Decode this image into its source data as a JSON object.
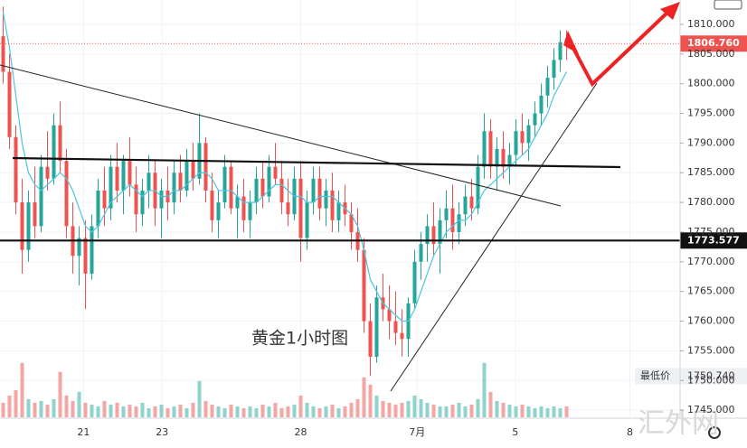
{
  "chart_data": {
    "type": "candlestick",
    "annotation": "黄金1小时图",
    "watermark": "汇外网",
    "xlim": [
      -0.5,
      106.93
    ],
    "xticks": [
      {
        "value": 12.7,
        "label": "21"
      },
      {
        "value": 25.1,
        "label": "23"
      },
      {
        "value": 47,
        "label": "28"
      },
      {
        "value": 65.4,
        "label": "7月"
      },
      {
        "value": 80.9,
        "label": "5"
      },
      {
        "value": 99,
        "label": "8"
      }
    ],
    "ylim": [
      1743.8,
      1814.1
    ],
    "yticks": [
      {
        "value": 1745,
        "label": "1745.000"
      },
      {
        "value": 1750,
        "label": "1750.000"
      },
      {
        "value": 1755,
        "label": "1755.000"
      },
      {
        "value": 1760,
        "label": "1760.000"
      },
      {
        "value": 1765,
        "label": "1765.000"
      },
      {
        "value": 1770,
        "label": "1770.000"
      },
      {
        "value": 1775,
        "label": "1775.000"
      },
      {
        "value": 1780,
        "label": "1780.000"
      },
      {
        "value": 1785,
        "label": "1785.000"
      },
      {
        "value": 1790,
        "label": "1790.000"
      },
      {
        "value": 1795,
        "label": "1795.000"
      },
      {
        "value": 1800,
        "label": "1800.000"
      },
      {
        "value": 1805,
        "label": "1805.000"
      },
      {
        "value": 1810,
        "label": "1810.000"
      }
    ],
    "up_color": "#26a69a",
    "down_color": "#ef5350",
    "ma_color": "#4dc3e0",
    "volume_up_color": "#8fd3cc",
    "volume_down_color": "#f3a6a4",
    "last_price": {
      "value": 1806.76,
      "label": "1806.760"
    },
    "support_line": {
      "value": 1773.577,
      "label": "1773.577"
    },
    "low_label": "最低价",
    "low": {
      "value": 1750.74,
      "label": "1750.740"
    },
    "volume_lim": [
      0,
      230
    ],
    "candles": [
      [
        1808,
        1813,
        1800,
        1802
      ],
      [
        1802,
        1805,
        1789,
        1791
      ],
      [
        1791,
        1793,
        1778,
        1780
      ],
      [
        1780,
        1784,
        1768,
        1772
      ],
      [
        1772,
        1782,
        1770,
        1780
      ],
      [
        1780,
        1786,
        1774,
        1776
      ],
      [
        1776,
        1788,
        1775,
        1786
      ],
      [
        1786,
        1792,
        1782,
        1784
      ],
      [
        1784,
        1795,
        1783,
        1793
      ],
      [
        1793,
        1797,
        1785,
        1787
      ],
      [
        1787,
        1789,
        1774,
        1776
      ],
      [
        1776,
        1780,
        1768,
        1771
      ],
      [
        1771,
        1776,
        1766,
        1774
      ],
      [
        1774,
        1777,
        1762,
        1768
      ],
      [
        1768,
        1778,
        1767,
        1776
      ],
      [
        1776,
        1784,
        1774,
        1782
      ],
      [
        1782,
        1786,
        1776,
        1779
      ],
      [
        1779,
        1788,
        1777,
        1786
      ],
      [
        1786,
        1790,
        1780,
        1782
      ],
      [
        1782,
        1788,
        1778,
        1787
      ],
      [
        1787,
        1791,
        1781,
        1783
      ],
      [
        1783,
        1786,
        1775,
        1778
      ],
      [
        1778,
        1784,
        1776,
        1782
      ],
      [
        1782,
        1788,
        1779,
        1785
      ],
      [
        1785,
        1787,
        1776,
        1779
      ],
      [
        1779,
        1784,
        1774,
        1782
      ],
      [
        1782,
        1786,
        1777,
        1780
      ],
      [
        1780,
        1787,
        1778,
        1785
      ],
      [
        1785,
        1788,
        1780,
        1782
      ],
      [
        1782,
        1789,
        1781,
        1787
      ],
      [
        1787,
        1790,
        1782,
        1784
      ],
      [
        1784,
        1795,
        1783,
        1790
      ],
      [
        1790,
        1791,
        1780,
        1782
      ],
      [
        1782,
        1785,
        1775,
        1777
      ],
      [
        1777,
        1782,
        1774,
        1780
      ],
      [
        1780,
        1788,
        1779,
        1786
      ],
      [
        1786,
        1787,
        1778,
        1779
      ],
      [
        1779,
        1783,
        1774,
        1781
      ],
      [
        1781,
        1784,
        1775,
        1777
      ],
      [
        1777,
        1782,
        1774,
        1780
      ],
      [
        1780,
        1786,
        1778,
        1784
      ],
      [
        1784,
        1787,
        1779,
        1781
      ],
      [
        1781,
        1788,
        1780,
        1786
      ],
      [
        1786,
        1790,
        1783,
        1784
      ],
      [
        1784,
        1787,
        1778,
        1780
      ],
      [
        1780,
        1784,
        1776,
        1778
      ],
      [
        1778,
        1786,
        1777,
        1784
      ],
      [
        1784,
        1787,
        1770,
        1774
      ],
      [
        1774,
        1782,
        1772,
        1780
      ],
      [
        1780,
        1786,
        1778,
        1784
      ],
      [
        1784,
        1786,
        1777,
        1779
      ],
      [
        1779,
        1784,
        1776,
        1782
      ],
      [
        1782,
        1785,
        1775,
        1777
      ],
      [
        1777,
        1782,
        1775,
        1780
      ],
      [
        1780,
        1783,
        1776,
        1778
      ],
      [
        1778,
        1780,
        1772,
        1775
      ],
      [
        1775,
        1779,
        1770,
        1772
      ],
      [
        1772,
        1774,
        1758,
        1760
      ],
      [
        1760,
        1763,
        1750.74,
        1754
      ],
      [
        1754,
        1766,
        1753,
        1764
      ],
      [
        1764,
        1768,
        1760,
        1762
      ],
      [
        1762,
        1766,
        1757,
        1760
      ],
      [
        1760,
        1765,
        1756,
        1758
      ],
      [
        1758,
        1762,
        1754,
        1757
      ],
      [
        1757,
        1764,
        1754,
        1763
      ],
      [
        1763,
        1772,
        1762,
        1770
      ],
      [
        1770,
        1775,
        1767,
        1773
      ],
      [
        1773,
        1778,
        1770,
        1776
      ],
      [
        1776,
        1780,
        1771,
        1773
      ],
      [
        1773,
        1779,
        1768,
        1777
      ],
      [
        1777,
        1782,
        1774,
        1779
      ],
      [
        1779,
        1783,
        1772,
        1775
      ],
      [
        1775,
        1780,
        1773,
        1778
      ],
      [
        1778,
        1783,
        1776,
        1781
      ],
      [
        1781,
        1784,
        1777,
        1779
      ],
      [
        1779,
        1788,
        1778,
        1786
      ],
      [
        1786,
        1795,
        1784,
        1792
      ],
      [
        1792,
        1794,
        1784,
        1786
      ],
      [
        1786,
        1791,
        1782,
        1789
      ],
      [
        1789,
        1792,
        1784,
        1786
      ],
      [
        1786,
        1790,
        1783,
        1788
      ],
      [
        1788,
        1794,
        1786,
        1792
      ],
      [
        1792,
        1795,
        1788,
        1790
      ],
      [
        1790,
        1794,
        1787,
        1793
      ],
      [
        1793,
        1797,
        1791,
        1795
      ],
      [
        1795,
        1800,
        1793,
        1798
      ],
      [
        1798,
        1803,
        1796,
        1801
      ],
      [
        1801,
        1806,
        1799,
        1804
      ],
      [
        1804,
        1809,
        1802,
        1807
      ],
      [
        1807,
        1809,
        1804,
        1806.76
      ]
    ],
    "ma": [
      1812,
      1806,
      1798,
      1790,
      1785,
      1783,
      1782,
      1783,
      1784,
      1785,
      1784,
      1782,
      1779,
      1776,
      1775,
      1776,
      1778,
      1780,
      1781,
      1782,
      1783,
      1782,
      1781,
      1782,
      1782,
      1781,
      1781,
      1782,
      1782,
      1783,
      1784,
      1785,
      1785,
      1784,
      1782,
      1782,
      1782,
      1781,
      1780,
      1780,
      1780,
      1781,
      1782,
      1783,
      1783,
      1782,
      1781,
      1781,
      1780,
      1780,
      1781,
      1781,
      1781,
      1780,
      1779,
      1778,
      1776,
      1772,
      1767,
      1765,
      1763,
      1762,
      1761,
      1760,
      1760,
      1762,
      1765,
      1768,
      1771,
      1773,
      1775,
      1776,
      1777,
      1777,
      1778,
      1780,
      1782,
      1783,
      1784,
      1785,
      1786,
      1787,
      1788,
      1789,
      1791,
      1793,
      1795,
      1798,
      1800,
      1802
    ],
    "volume": [
      8,
      12,
      15,
      30,
      10,
      8,
      9,
      7,
      10,
      25,
      12,
      9,
      14,
      8,
      7,
      6,
      9,
      7,
      8,
      6,
      7,
      6,
      8,
      5,
      6,
      7,
      5,
      6,
      7,
      5,
      8,
      20,
      9,
      7,
      6,
      5,
      7,
      6,
      5,
      6,
      5,
      7,
      6,
      8,
      5,
      6,
      7,
      12,
      8,
      6,
      5,
      6,
      7,
      5,
      6,
      8,
      10,
      22,
      18,
      12,
      9,
      8,
      7,
      8,
      9,
      12,
      10,
      8,
      7,
      6,
      6,
      7,
      8,
      6,
      7,
      10,
      30,
      14,
      9,
      8,
      7,
      6,
      7,
      6,
      5,
      6,
      5,
      6,
      5,
      6
    ]
  }
}
